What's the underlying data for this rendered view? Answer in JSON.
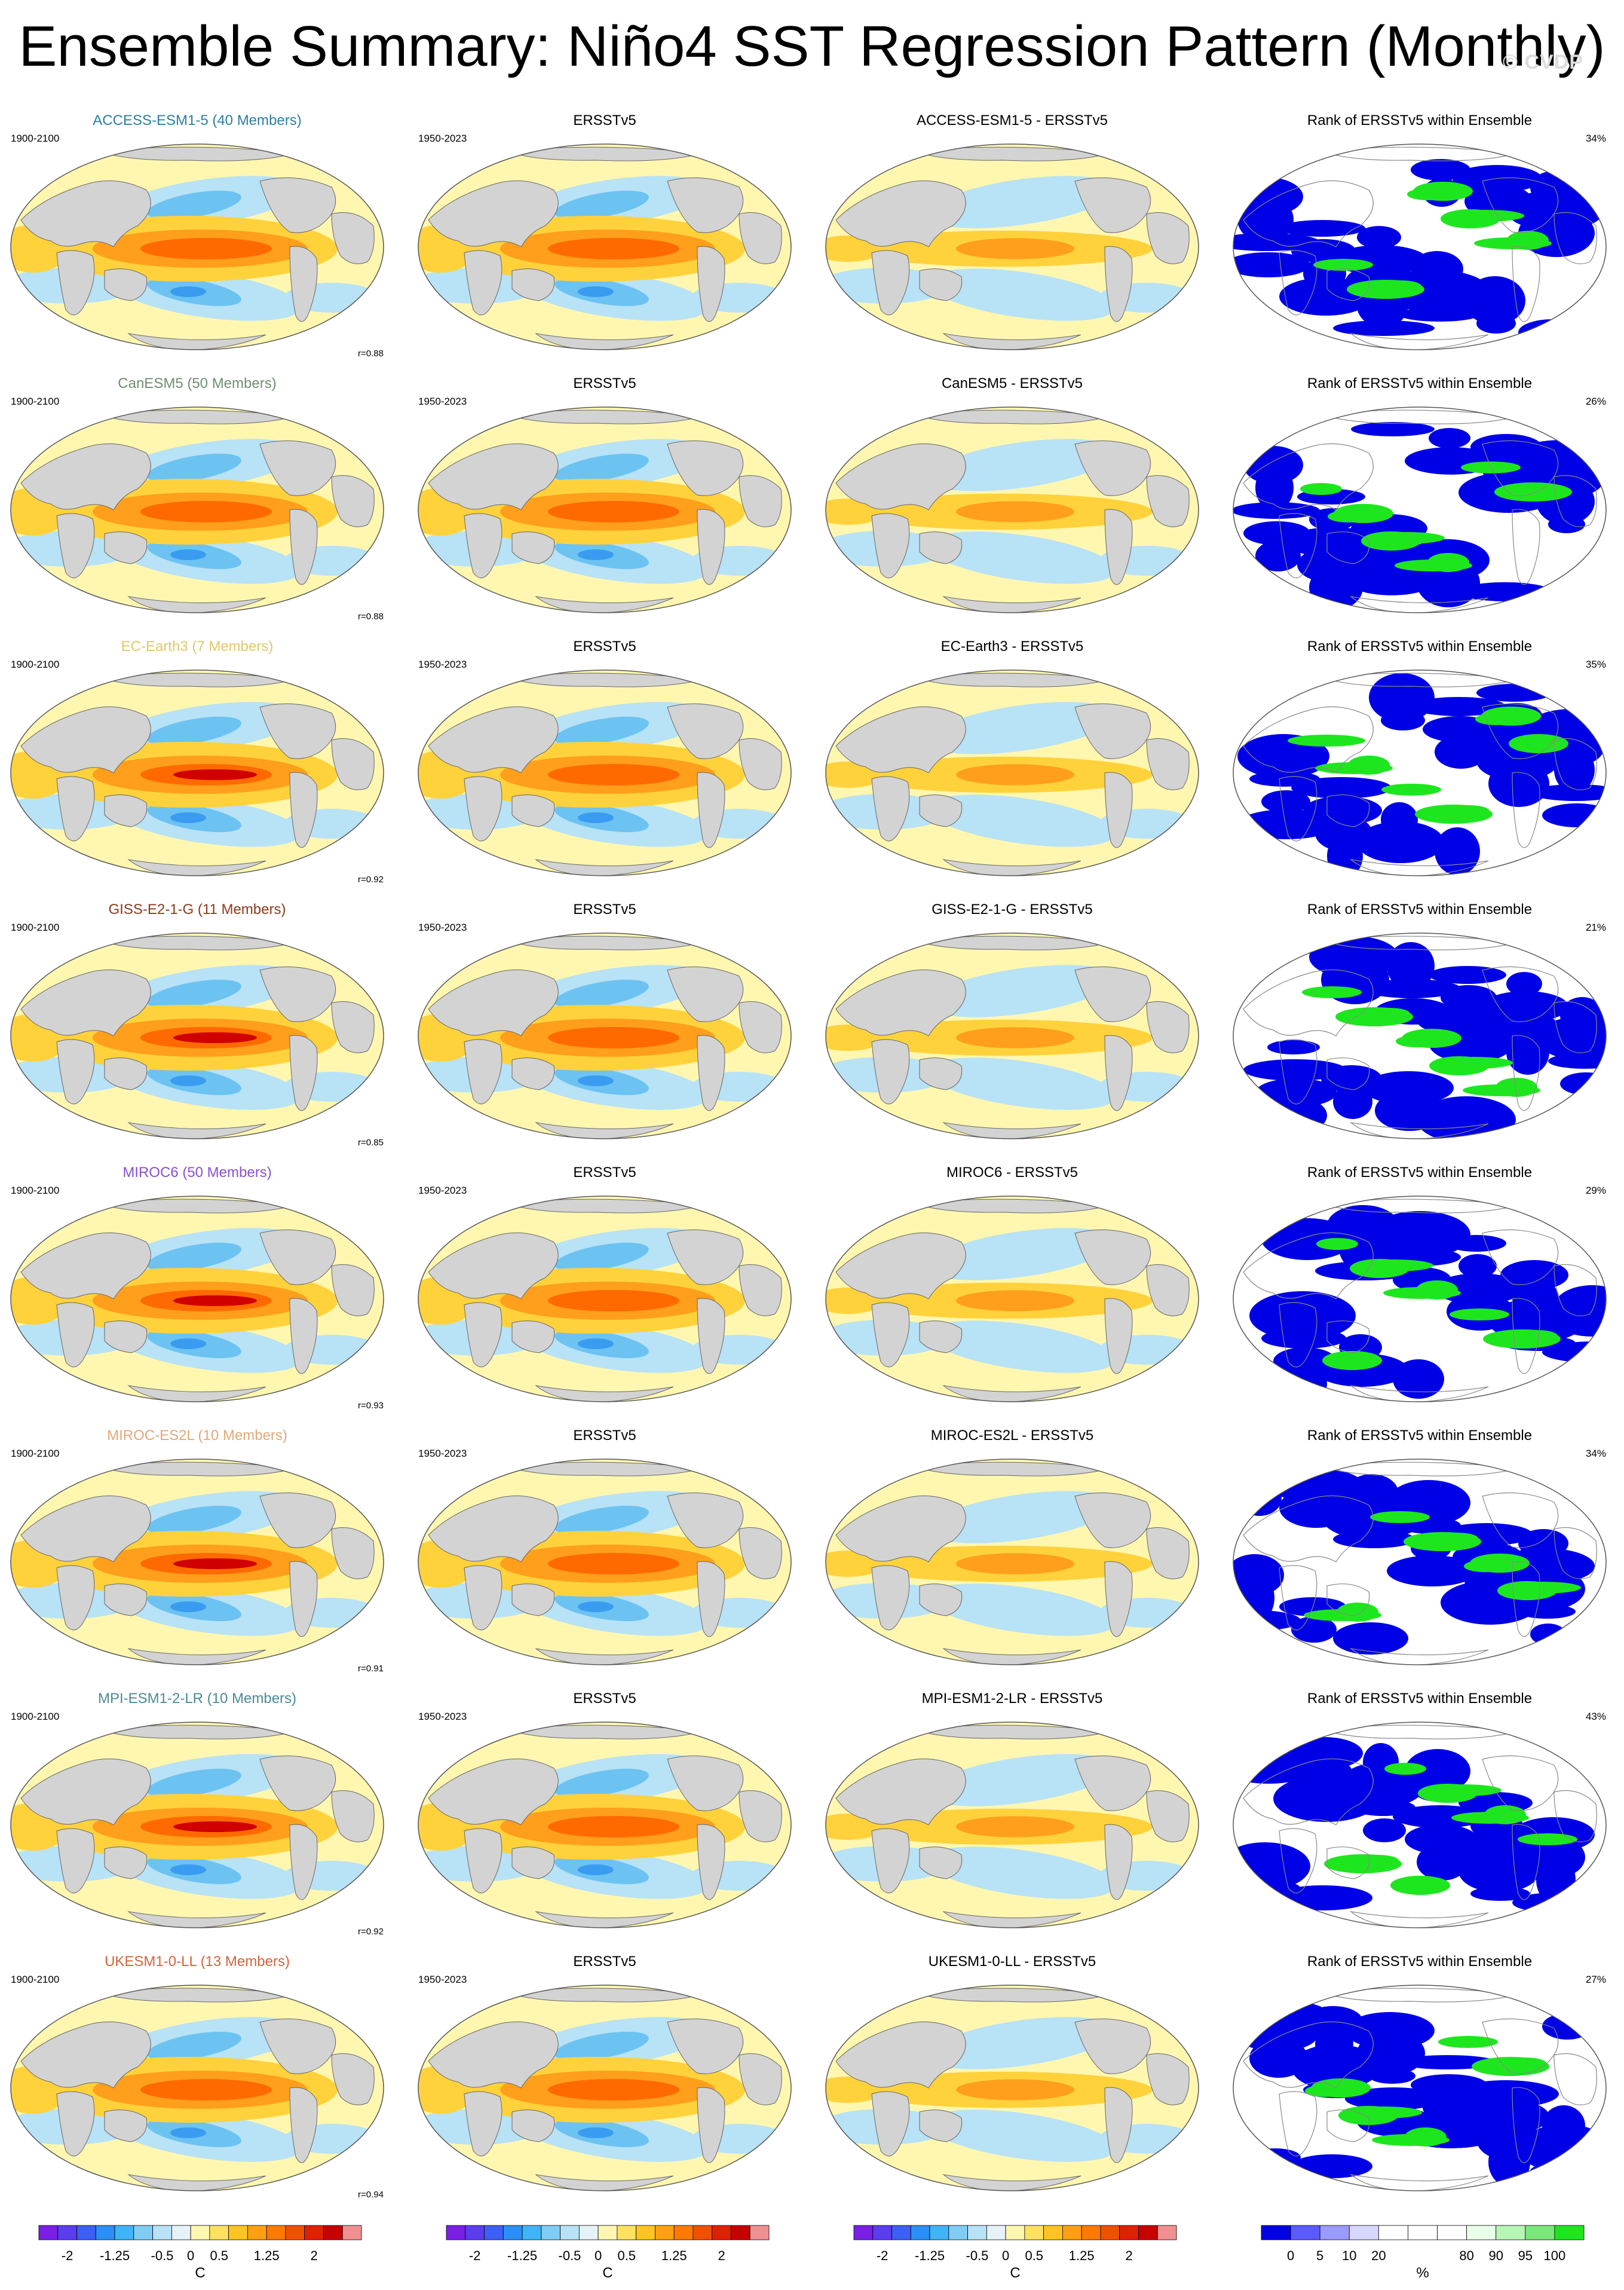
{
  "title": "Ensemble Summary: Niño4 SST Regression Pattern (Monthly)",
  "watermark": "© CVDP",
  "obs_name": "ERSSTv5",
  "obs_period": "1950-2023",
  "model_period": "1900-2100",
  "rank_title": "Rank of ERSSTv5 within Ensemble",
  "rows": [
    {
      "model_title": "ACCESS-ESM1-5 (40 Members)",
      "model_color": "#2d7fa0",
      "diff_title": "ACCESS-ESM1-5 - ERSSTv5",
      "r": "r=0.88",
      "pct": "34%"
    },
    {
      "model_title": "CanESM5 (50 Members)",
      "model_color": "#6e8f6e",
      "diff_title": "CanESM5 - ERSSTv5",
      "r": "r=0.88",
      "pct": "26%"
    },
    {
      "model_title": "EC-Earth3 (7 Members)",
      "model_color": "#e0c86a",
      "diff_title": "EC-Earth3 - ERSSTv5",
      "r": "r=0.92",
      "pct": "35%"
    },
    {
      "model_title": "GISS-E2-1-G (11 Members)",
      "model_color": "#8b3a1a",
      "diff_title": "GISS-E2-1-G - ERSSTv5",
      "r": "r=0.85",
      "pct": "21%"
    },
    {
      "model_title": "MIROC6 (50 Members)",
      "model_color": "#8a4fd0",
      "diff_title": "MIROC6 - ERSSTv5",
      "r": "r=0.93",
      "pct": "29%"
    },
    {
      "model_title": "MIROC-ES2L (10 Members)",
      "model_color": "#e0a878",
      "diff_title": "MIROC-ES2L - ERSSTv5",
      "r": "r=0.91",
      "pct": "34%"
    },
    {
      "model_title": "MPI-ESM1-2-LR (10 Members)",
      "model_color": "#4a8a96",
      "diff_title": "MPI-ESM1-2-LR - ERSSTv5",
      "r": "r=0.92",
      "pct": "43%"
    },
    {
      "model_title": "UKESM1-0-LL (13 Members)",
      "model_color": "#d2643c",
      "diff_title": "UKESM1-0-LL - ERSSTv5",
      "r": "r=0.94",
      "pct": "27%"
    }
  ],
  "sst_colorbar": {
    "colors": [
      "#7a1ee8",
      "#5a3df0",
      "#3c5ff5",
      "#2a8ff6",
      "#40b4f8",
      "#7fcdf5",
      "#b8e2f6",
      "#e6f2f8",
      "#fff7b0",
      "#ffe060",
      "#ffc420",
      "#ffa010",
      "#ff7a00",
      "#f05000",
      "#e02000",
      "#c80000",
      "#f09090"
    ],
    "ticks": [
      "-2",
      "-1.25",
      "-0.5",
      "0",
      "0.5",
      "1.25",
      "2"
    ],
    "unit": "C"
  },
  "rank_colorbar": {
    "colors": [
      "#0000e6",
      "#5a5aff",
      "#9a9aff",
      "#d6d6ff",
      "#ffffff",
      "#ffffff",
      "#ffffff",
      "#e8ffe8",
      "#b6f5b6",
      "#7ae87a",
      "#1ee61e"
    ],
    "ticks": [
      "0",
      "5",
      "10",
      "20",
      "80",
      "90",
      "95",
      "100"
    ],
    "unit": "%"
  },
  "colors": {
    "land": "#d3d3d3",
    "warm_light": "#fff7b0",
    "warm": "#ffd23c",
    "warm_mid": "#ff9f1c",
    "warm_strong": "#ff6a00",
    "warm_max": "#d00000",
    "cool_light": "#b8e2f6",
    "cool": "#6cc3f2",
    "cool_strong": "#3a9cf0",
    "rank_low": "#0000e6",
    "rank_high": "#1ee61e"
  }
}
